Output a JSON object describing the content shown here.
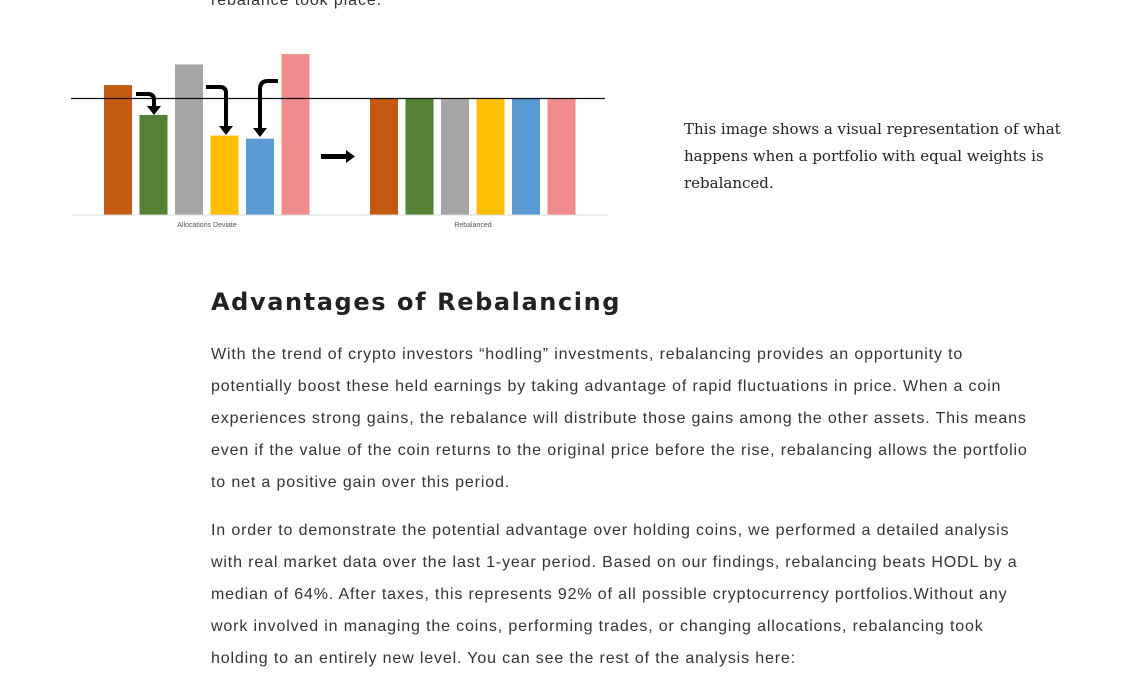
{
  "article": {
    "top_line": "rebalance took place.",
    "image_caption": "This image shows a visual representation of what happens when a portfolio with equal weights is rebalanced.",
    "heading": "Advantages of Rebalancing",
    "paragraphs": [
      "With the trend of crypto investors “hodling” investments, rebalancing provides an opportunity to potentially boost these held earnings by taking advantage of rapid fluctuations in price. When a coin experiences strong gains, the rebalance will distribute those gains among the other assets. This means even if the value of the coin returns to the original price before the rise, rebalancing allows the portfolio to net a positive gain over this period.",
      "In order to demonstrate the potential advantage over holding coins, we performed a detailed analysis with real market data over the last 1-year period. Based on our findings, rebalancing beats HODL by a median of 64%. After taxes, this represents 92% of all possible cryptocurrency portfolios.Without any work involved in managing the coins, performing trades, or changing allocations, rebalancing took holding to an entirely new level. You can see the rest of the analysis here:"
    ]
  },
  "chart_data": {
    "type": "bar",
    "title": "",
    "ylim": [
      0,
      160
    ],
    "target": 113,
    "colors": [
      "#c55a11",
      "#548235",
      "#a5a5a5",
      "#ffc000",
      "#5b9bd5",
      "#f08c8c"
    ],
    "groups": [
      {
        "label": "Allocations Deviate",
        "values": [
          126,
          97,
          146,
          77,
          74,
          156
        ]
      },
      {
        "label": "Rebalanced",
        "values": [
          113,
          113,
          113,
          113,
          113,
          113
        ]
      }
    ]
  }
}
